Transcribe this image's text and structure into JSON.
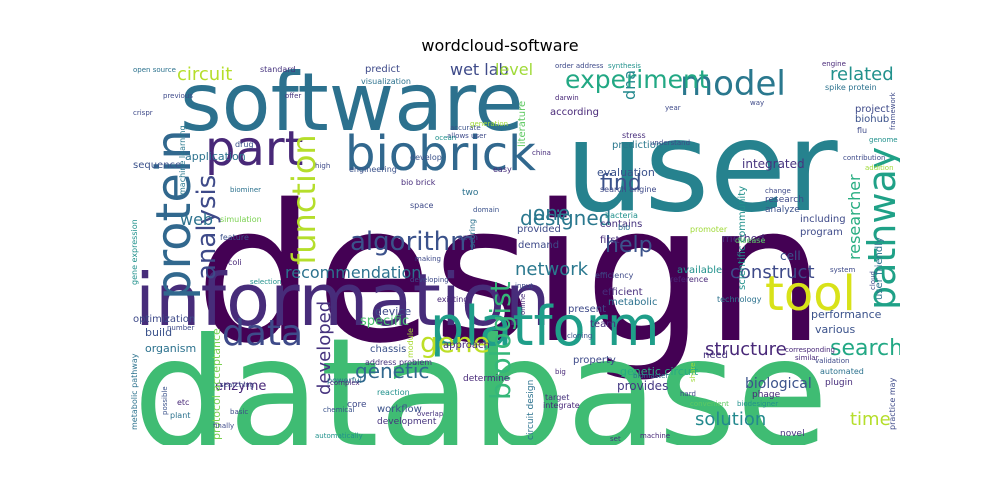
{
  "title": "wordcloud-software",
  "palette": [
    "#440154",
    "#472c7a",
    "#3b518b",
    "#2c718e",
    "#21908d",
    "#27ad81",
    "#5cc863",
    "#aadc32",
    "#fde725"
  ],
  "words": [
    {
      "text": "design",
      "color": "#440154"
    },
    {
      "text": "database",
      "color": "#3fbc73"
    },
    {
      "text": "user",
      "color": "#26828e"
    },
    {
      "text": "software",
      "color": "#2c718e"
    },
    {
      "text": "information",
      "color": "#472c7a"
    },
    {
      "text": "biobrick",
      "color": "#31688e"
    },
    {
      "text": "platform",
      "color": "#1f9e89"
    },
    {
      "text": "protein",
      "color": "#31688e"
    },
    {
      "text": "part",
      "color": "#482878"
    },
    {
      "text": "model",
      "color": "#2a788e"
    },
    {
      "text": "experiment",
      "color": "#22a884"
    },
    {
      "text": "function",
      "color": "#b5de2b"
    },
    {
      "text": "tool",
      "color": "#d8e219"
    },
    {
      "text": "pathway",
      "color": "#1fa187"
    },
    {
      "text": "data",
      "color": "#3e4a89"
    },
    {
      "text": "gene",
      "color": "#bddf26"
    },
    {
      "text": "biologist",
      "color": "#35b779"
    },
    {
      "text": "algorithm",
      "color": "#3b528b"
    },
    {
      "text": "analysis",
      "color": "#3e4a89"
    },
    {
      "text": "search",
      "color": "#22a884"
    },
    {
      "text": "circuit",
      "color": "#b5de2b"
    },
    {
      "text": "related",
      "color": "#21918c"
    },
    {
      "text": "help",
      "color": "#3b528b"
    },
    {
      "text": "find",
      "color": "#3b528b"
    },
    {
      "text": "designed",
      "color": "#2a788e"
    },
    {
      "text": "one",
      "color": "#2a788e"
    },
    {
      "text": "network",
      "color": "#2a788e"
    },
    {
      "text": "recommendation",
      "color": "#2c728e"
    },
    {
      "text": "construct",
      "color": "#3e4a89"
    },
    {
      "text": "researcher",
      "color": "#27ad81"
    },
    {
      "text": "structure",
      "color": "#482878"
    },
    {
      "text": "genetic",
      "color": "#31688e"
    },
    {
      "text": "developed",
      "color": "#46337e"
    },
    {
      "text": "solution",
      "color": "#23898e"
    },
    {
      "text": "time",
      "color": "#b5de2b"
    },
    {
      "text": "web",
      "color": "#2c728e"
    },
    {
      "text": "wet lab",
      "color": "#3e4a89"
    },
    {
      "text": "level",
      "color": "#a0da39"
    },
    {
      "text": "dna",
      "color": "#23898e"
    },
    {
      "text": "specific",
      "color": "#4ac16d"
    },
    {
      "text": "biological",
      "color": "#3b528b"
    },
    {
      "text": "enzyme",
      "color": "#482878"
    },
    {
      "text": "integrated",
      "color": "#46337e"
    },
    {
      "text": "method",
      "color": "#472d7b"
    },
    {
      "text": "cell",
      "color": "#3b528b"
    },
    {
      "text": "device",
      "color": "#3e4a89"
    },
    {
      "text": "efficient",
      "color": "#472d7b"
    },
    {
      "text": "metabolic",
      "color": "#2c728e"
    },
    {
      "text": "provides",
      "color": "#443983"
    },
    {
      "text": "genetic circuit",
      "color": "#27ad81"
    },
    {
      "text": "performance",
      "color": "#3b528b"
    },
    {
      "text": "various",
      "color": "#3b528b"
    },
    {
      "text": "organism",
      "color": "#2c728e"
    },
    {
      "text": "build",
      "color": "#3b528b"
    },
    {
      "text": "optimization",
      "color": "#3e4a89"
    },
    {
      "text": "sequence",
      "color": "#3b528b"
    },
    {
      "text": "application",
      "color": "#2c728e"
    },
    {
      "text": "evaluation",
      "color": "#3b528b"
    },
    {
      "text": "prediction",
      "color": "#2a788e"
    },
    {
      "text": "scientific community",
      "color": "#21918c"
    },
    {
      "text": "program",
      "color": "#3e4a89"
    },
    {
      "text": "including",
      "color": "#3e4a89"
    },
    {
      "text": "user friendly",
      "color": "#2c728e"
    },
    {
      "text": "biohub",
      "color": "#3b528b"
    },
    {
      "text": "project",
      "color": "#3e4a89"
    },
    {
      "text": "according",
      "color": "#482878"
    },
    {
      "text": "predict",
      "color": "#3e4a89"
    },
    {
      "text": "visualization",
      "color": "#2c728e"
    },
    {
      "text": "standard",
      "color": "#46337e"
    },
    {
      "text": "literature",
      "color": "#5ec962"
    },
    {
      "text": "provided",
      "color": "#3e4a89"
    },
    {
      "text": "demand",
      "color": "#3e4a89"
    },
    {
      "text": "first",
      "color": "#472d7b"
    },
    {
      "text": "contains",
      "color": "#46337e"
    },
    {
      "text": "available",
      "color": "#21918c"
    },
    {
      "text": "reference",
      "color": "#482878"
    },
    {
      "text": "technology",
      "color": "#2c728e"
    },
    {
      "text": "present",
      "color": "#3e4a89"
    },
    {
      "text": "team",
      "color": "#472d7b"
    },
    {
      "text": "approach",
      "color": "#482878"
    },
    {
      "text": "property",
      "color": "#3e4a89"
    },
    {
      "text": "need",
      "color": "#46337e"
    },
    {
      "text": "chassis",
      "color": "#3b528b"
    },
    {
      "text": "module",
      "color": "#a8db34"
    },
    {
      "text": "protocol acceptance",
      "color": "#7ad151"
    },
    {
      "text": "metabolic pathway",
      "color": "#2c728e"
    },
    {
      "text": "gene expression",
      "color": "#21918c"
    },
    {
      "text": "machine learning",
      "color": "#2a788e"
    },
    {
      "text": "workflow",
      "color": "#3b528b"
    },
    {
      "text": "development",
      "color": "#46337e"
    },
    {
      "text": "core",
      "color": "#3e4a89"
    },
    {
      "text": "determine",
      "color": "#482878"
    },
    {
      "text": "address problem",
      "color": "#46337e"
    },
    {
      "text": "reaction",
      "color": "#21918c"
    },
    {
      "text": "powerful",
      "color": "#2c728e"
    },
    {
      "text": "circuit design",
      "color": "#2c728e"
    },
    {
      "text": "target",
      "color": "#46337e"
    },
    {
      "text": "integrate",
      "color": "#482878"
    },
    {
      "text": "phage",
      "color": "#482878"
    },
    {
      "text": "plugin",
      "color": "#472d7b"
    },
    {
      "text": "automated",
      "color": "#2c728e"
    },
    {
      "text": "practice may",
      "color": "#3e4a89"
    },
    {
      "text": "novel",
      "color": "#46337e"
    },
    {
      "text": "bio brick",
      "color": "#472d7b"
    },
    {
      "text": "engineering",
      "color": "#3b528b"
    },
    {
      "text": "space",
      "color": "#3e4a89"
    },
    {
      "text": "develop",
      "color": "#3b528b"
    },
    {
      "text": "easy",
      "color": "#472d7b"
    },
    {
      "text": "two",
      "color": "#2c728e"
    },
    {
      "text": "bacteria",
      "color": "#21918c"
    },
    {
      "text": "bio",
      "color": "#2c728e"
    },
    {
      "text": "search engine",
      "color": "#3e4a89"
    },
    {
      "text": "scoring",
      "color": "#2c728e"
    },
    {
      "text": "domain",
      "color": "#3b528b"
    },
    {
      "text": "open",
      "color": "#3e4a89"
    },
    {
      "text": "drug",
      "color": "#3b528b"
    },
    {
      "text": "coli",
      "color": "#482878"
    },
    {
      "text": "feature",
      "color": "#3b528b"
    },
    {
      "text": "simulation",
      "color": "#7ad151"
    },
    {
      "text": "biominer",
      "color": "#2c728e"
    },
    {
      "text": "existing",
      "color": "#482878"
    },
    {
      "text": "efficiency",
      "color": "#3e4a89"
    },
    {
      "text": "research",
      "color": "#3e4a89"
    },
    {
      "text": "analyze",
      "color": "#3b528b"
    },
    {
      "text": "disease",
      "color": "#5ec962"
    },
    {
      "text": "promoter",
      "color": "#a0da39"
    },
    {
      "text": "spike protein",
      "color": "#2c728e"
    },
    {
      "text": "engine",
      "color": "#482878"
    },
    {
      "text": "flu",
      "color": "#3e4a89"
    },
    {
      "text": "stress",
      "color": "#472d7b"
    },
    {
      "text": "understand",
      "color": "#3e4a89"
    },
    {
      "text": "biomaster",
      "color": "#2c728e"
    },
    {
      "text": "biodesigner",
      "color": "#21918c"
    },
    {
      "text": "machine",
      "color": "#482878"
    },
    {
      "text": "hard",
      "color": "#3e4a89"
    },
    {
      "text": "convenient",
      "color": "#5ec962"
    },
    {
      "text": "share",
      "color": "#a0da39"
    },
    {
      "text": "cloning",
      "color": "#3b528b"
    },
    {
      "text": "set",
      "color": "#46337e"
    },
    {
      "text": "etc",
      "color": "#482878"
    },
    {
      "text": "possible",
      "color": "#3b528b"
    },
    {
      "text": "plant",
      "color": "#2c728e"
    },
    {
      "text": "number",
      "color": "#3e4a89"
    },
    {
      "text": "chemical",
      "color": "#3b528b"
    },
    {
      "text": "complex",
      "color": "#482878"
    },
    {
      "text": "basic",
      "color": "#3e4a89"
    },
    {
      "text": "overlap",
      "color": "#46337e"
    },
    {
      "text": "system",
      "color": "#3e4a89"
    },
    {
      "text": "similar",
      "color": "#482878"
    },
    {
      "text": "corresponding",
      "color": "#482878"
    },
    {
      "text": "validation",
      "color": "#3e4a89"
    },
    {
      "text": "change",
      "color": "#3e4a89"
    },
    {
      "text": "crispr",
      "color": "#3e4a89"
    },
    {
      "text": "open source",
      "color": "#2c728e"
    },
    {
      "text": "previous",
      "color": "#3e4a89"
    },
    {
      "text": "order address",
      "color": "#3e4a89"
    },
    {
      "text": "synthesis",
      "color": "#21918c"
    },
    {
      "text": "china",
      "color": "#472d7b"
    },
    {
      "text": "darwin",
      "color": "#482878"
    },
    {
      "text": "offer",
      "color": "#46337e"
    },
    {
      "text": "way",
      "color": "#3e4a89"
    },
    {
      "text": "genome",
      "color": "#21918c"
    },
    {
      "text": "contribution",
      "color": "#3e4a89"
    },
    {
      "text": "addition",
      "color": "#a0da39"
    },
    {
      "text": "framework",
      "color": "#3e4a89"
    },
    {
      "text": "selection",
      "color": "#21918c"
    },
    {
      "text": "input",
      "color": "#3e4a89"
    },
    {
      "text": "making",
      "color": "#3e4a89"
    },
    {
      "text": "developing",
      "color": "#3e4a89"
    },
    {
      "text": "online",
      "color": "#472d7b"
    },
    {
      "text": "cloud",
      "color": "#3e4a89"
    },
    {
      "text": "big",
      "color": "#482878"
    },
    {
      "text": "accurate",
      "color": "#3b528b"
    },
    {
      "text": "allows user",
      "color": "#3e4a89"
    },
    {
      "text": "generation",
      "color": "#a0da39"
    },
    {
      "text": "ocean",
      "color": "#21918c"
    },
    {
      "text": "searching",
      "color": "#3e4a89"
    },
    {
      "text": "finally",
      "color": "#3e4a89"
    },
    {
      "text": "automatically",
      "color": "#21918c"
    },
    {
      "text": "high",
      "color": "#3e4a89"
    },
    {
      "text": "year",
      "color": "#3e4a89"
    }
  ]
}
